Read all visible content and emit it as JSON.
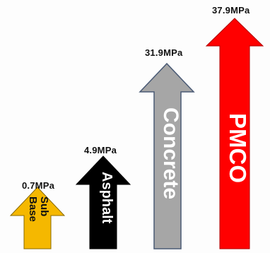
{
  "arrows": [
    {
      "label_line1": "Sub",
      "label_line2": "Base",
      "value": "0.7MPa",
      "fill": "#f5b800",
      "text_color": "#111111"
    },
    {
      "label": "Asphalt",
      "value": "4.9MPa",
      "fill": "#000000",
      "text_color": "#ffffff"
    },
    {
      "label": "Concrete",
      "value": "31.9MPa",
      "fill": "#a6a6a6",
      "text_color": "#ffffff"
    },
    {
      "label": "PMCO",
      "value": "37.9MPa",
      "fill": "#ff0000",
      "text_color": "#ffffff"
    }
  ]
}
